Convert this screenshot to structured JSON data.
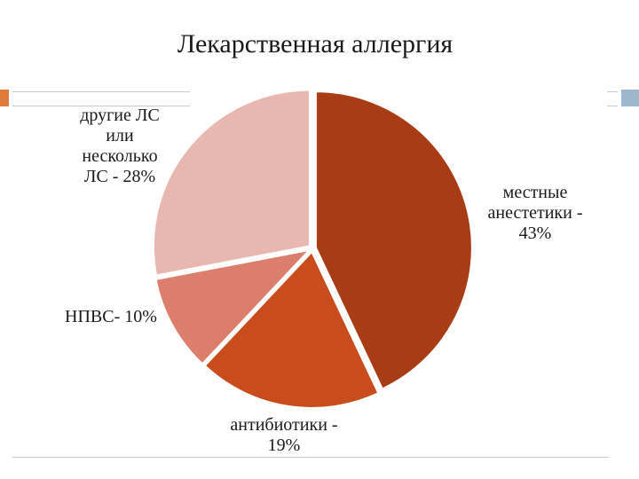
{
  "title": "Лекарственная аллергия",
  "chart_data": {
    "type": "pie",
    "title": "Лекарственная аллергия",
    "slices": [
      {
        "label_lines": [
          "местные",
          "анестетики -",
          "43%"
        ],
        "value": 43,
        "color": "#a83c14"
      },
      {
        "label_lines": [
          "антибиотики -",
          "19%"
        ],
        "value": 19,
        "color": "#c84c1c"
      },
      {
        "label_lines": [
          "НПВС- 10%"
        ],
        "value": 10,
        "color": "#dc7e6c"
      },
      {
        "label_lines": [
          "другие ЛС",
          "или",
          "несколько",
          "ЛС - 28%"
        ],
        "value": 28,
        "color": "#e8b8b0"
      }
    ],
    "start_angle_deg": 0,
    "direction": "clockwise",
    "legend": "none"
  }
}
